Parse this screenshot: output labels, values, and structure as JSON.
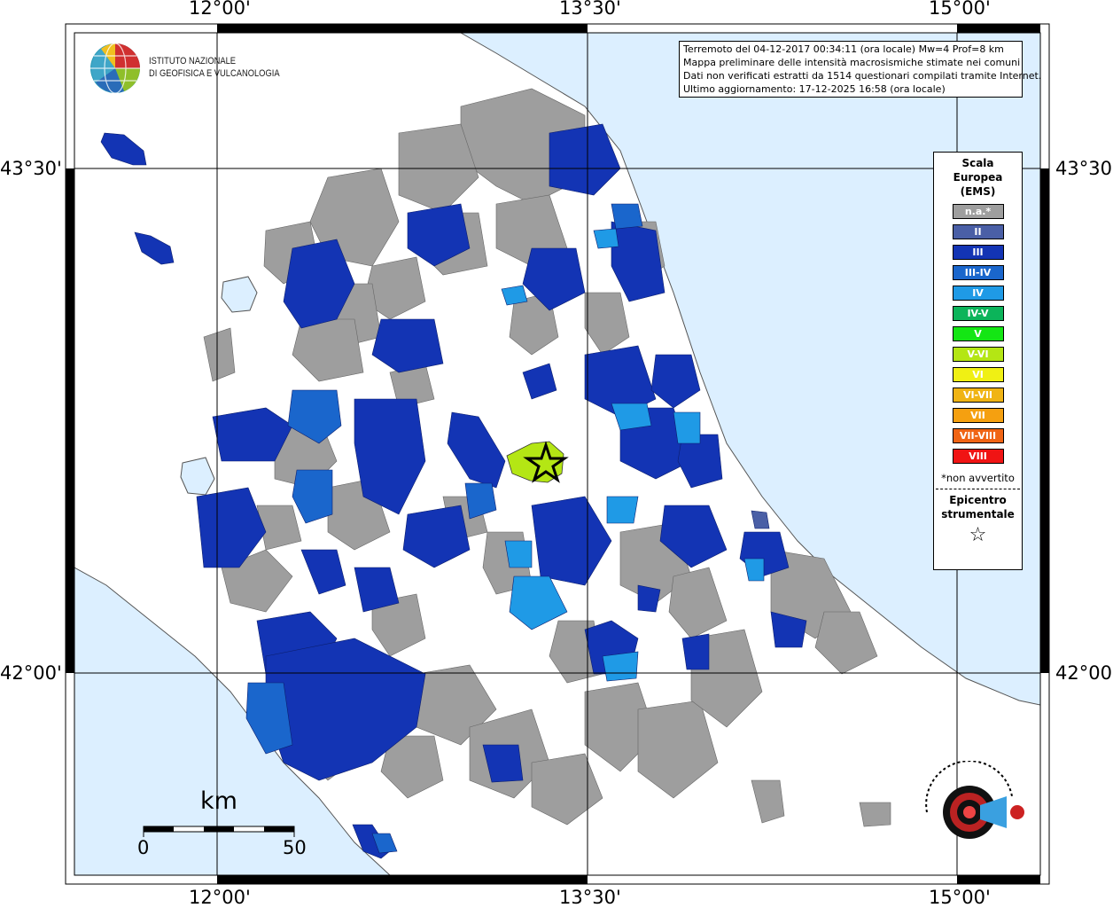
{
  "axes": {
    "lon_labels": [
      "12°00'",
      "13°30'",
      "15°00'"
    ],
    "lat_labels": [
      "43°30'",
      "42°00'"
    ]
  },
  "info": {
    "line1": "Terremoto del 04-12-2017 00:34:11 (ora locale) Mw=4 Prof=8 km",
    "line2": "Mappa preliminare delle intensità macrosismiche stimate nei comuni",
    "line3": "Dati non verificati estratti da 1514 questionari compilati tramite Internet.",
    "line4": "Ultimo aggiornamento: 17-12-2025 16:58 (ora locale)"
  },
  "logo": {
    "line1": "ISTITUTO NAZIONALE",
    "line2": "DI GEOFISICA E VULCANOLOGIA"
  },
  "legend": {
    "title1": "Scala",
    "title2": "Europea",
    "title3": "(EMS)",
    "items": [
      {
        "label": "n.a.*",
        "color": "#9e9e9e"
      },
      {
        "label": "II",
        "color": "#4a5fa6"
      },
      {
        "label": "III",
        "color": "#1334b4"
      },
      {
        "label": "III-IV",
        "color": "#1a66cc"
      },
      {
        "label": "IV",
        "color": "#1f9ae6"
      },
      {
        "label": "IV-V",
        "color": "#0cb45a"
      },
      {
        "label": "V",
        "color": "#14e614"
      },
      {
        "label": "V-VI",
        "color": "#b4e614"
      },
      {
        "label": "VI",
        "color": "#f0f014"
      },
      {
        "label": "VI-VII",
        "color": "#f0b414"
      },
      {
        "label": "VII",
        "color": "#f5a010"
      },
      {
        "label": "VII-VIII",
        "color": "#f06414"
      },
      {
        "label": "VIII",
        "color": "#f01414"
      }
    ],
    "note": "*non avvertito",
    "epi1": "Epicentro",
    "epi2": "strumentale",
    "star": "☆"
  },
  "scale": {
    "unit": "km",
    "min": "0",
    "max": "50"
  },
  "colors": {
    "sea": "#dcefff",
    "land": "#ffffff",
    "na": "#9e9e9e",
    "ems3": "#1334b4",
    "ems34": "#1a66cc",
    "ems4": "#1f9ae6",
    "ems56": "#b4e614"
  }
}
